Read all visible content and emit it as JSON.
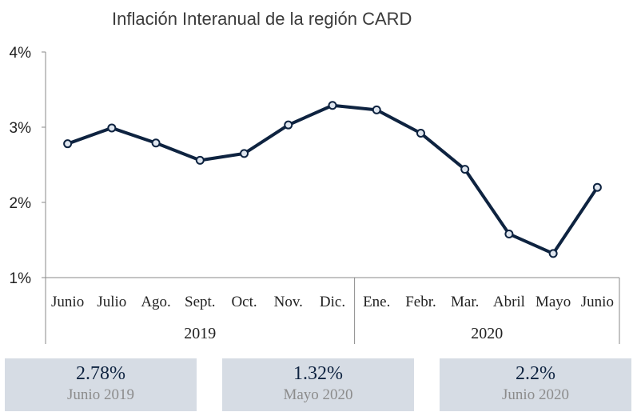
{
  "chart_data": {
    "type": "line",
    "title": "Inflación Interanual de la región CARD",
    "categories": [
      "Junio",
      "Julio",
      "Ago.",
      "Sept.",
      "Oct.",
      "Nov.",
      "Dic.",
      "Ene.",
      "Febr.",
      "Mar.",
      "Abril",
      "Mayo",
      "Junio"
    ],
    "groups": [
      {
        "label": "2019",
        "from": 0,
        "to": 6
      },
      {
        "label": "2020",
        "from": 7,
        "to": 12
      }
    ],
    "series": [
      {
        "values": [
          2.78,
          2.99,
          2.79,
          2.56,
          2.65,
          3.03,
          3.29,
          3.23,
          2.92,
          2.44,
          1.58,
          1.32,
          2.2
        ]
      }
    ],
    "ylim": [
      1,
      4
    ],
    "yticks": [
      "4%",
      "3%",
      "2%",
      "1%"
    ],
    "ytick_values": [
      4,
      3,
      2,
      1
    ],
    "grid": false,
    "line_color": "#0e2340",
    "marker_fill": "#dfe6ef"
  },
  "kpis": [
    {
      "value": "2.78%",
      "label": "Junio 2019"
    },
    {
      "value": "1.32%",
      "label": "Mayo 2020"
    },
    {
      "value": "2.2%",
      "label": "Junio 2020"
    }
  ]
}
